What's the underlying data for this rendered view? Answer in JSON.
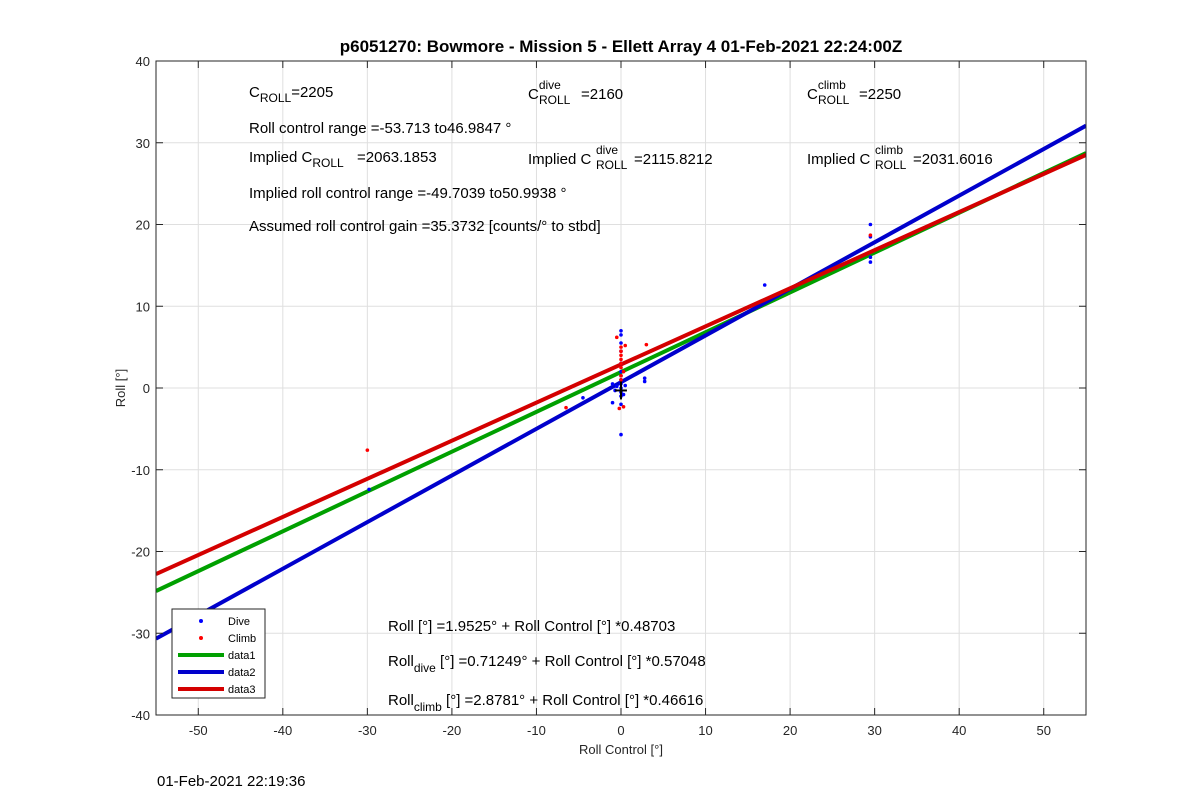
{
  "chart_data": {
    "type": "scatter",
    "title": "p6051270: Bowmore - Mission 5 - Ellett Array 4 01-Feb-2021 22:24:00Z",
    "xlabel": "Roll Control [°]",
    "ylabel": "Roll [°]",
    "xlim": [
      -55,
      55
    ],
    "ylim": [
      -40,
      40
    ],
    "xticks": [
      -50,
      -40,
      -30,
      -20,
      -10,
      0,
      10,
      20,
      30,
      40,
      50
    ],
    "yticks": [
      -40,
      -30,
      -20,
      -10,
      0,
      10,
      20,
      30,
      40
    ],
    "grid": true,
    "legend_position": "bottom-left",
    "series": [
      {
        "name": "Dive",
        "color": "#0000ff",
        "marker": "point",
        "points": [
          [
            0,
            7
          ],
          [
            0,
            6.5
          ],
          [
            0,
            5.5
          ],
          [
            0,
            4.5
          ],
          [
            0,
            3
          ],
          [
            0,
            2
          ],
          [
            0,
            1.5
          ],
          [
            0,
            1
          ],
          [
            0,
            0.5
          ],
          [
            0,
            0
          ],
          [
            0,
            -0.5
          ],
          [
            0,
            -1
          ],
          [
            -0.5,
            0.2
          ],
          [
            -0.7,
            -0.3
          ],
          [
            -1,
            -1.8
          ],
          [
            -1,
            0.5
          ],
          [
            0,
            -5.7
          ],
          [
            0,
            -2
          ],
          [
            2.8,
            0.8
          ],
          [
            2.8,
            1.2
          ],
          [
            -4.5,
            -1.2
          ],
          [
            17,
            12.6
          ],
          [
            29.5,
            20
          ],
          [
            29.5,
            18.5
          ],
          [
            29.5,
            16
          ],
          [
            29.5,
            15.4
          ],
          [
            -29.8,
            -12.4
          ],
          [
            0.5,
            0.3
          ],
          [
            0.3,
            -0.8
          ]
        ]
      },
      {
        "name": "Climb",
        "color": "#ff0000",
        "marker": "point",
        "points": [
          [
            -30,
            -7.6
          ],
          [
            -6.5,
            -2.4
          ],
          [
            0,
            5
          ],
          [
            0,
            4.5
          ],
          [
            0,
            4
          ],
          [
            0,
            3.5
          ],
          [
            0,
            3
          ],
          [
            0,
            2.5
          ],
          [
            0,
            1.5
          ],
          [
            0,
            1
          ],
          [
            -0.5,
            6.2
          ],
          [
            0.5,
            5.2
          ],
          [
            3,
            5.3
          ],
          [
            0.3,
            -2.3
          ],
          [
            -0.2,
            -2.5
          ],
          [
            29.5,
            18.7
          ],
          [
            0.3,
            2
          ]
        ]
      },
      {
        "name": "data1",
        "color": "#00a000",
        "type": "line",
        "intercept": 1.9525,
        "slope": 0.48703
      },
      {
        "name": "data2",
        "color": "#0000cc",
        "type": "line",
        "intercept": 0.71249,
        "slope": 0.57048
      },
      {
        "name": "data3",
        "color": "#d40000",
        "type": "line",
        "intercept": 2.8781,
        "slope": 0.46616
      }
    ],
    "annotations": {
      "c_roll_base": "C",
      "c_roll_sub": "ROLL",
      "c_roll_value": "=2205",
      "c_dive_base": "C",
      "c_dive_sup": "dive",
      "c_dive_sub": "ROLL",
      "c_dive_value": "=2160",
      "c_climb_base": "C",
      "c_climb_sup": "climb",
      "c_climb_sub": "ROLL",
      "c_climb_value": "=2250",
      "roll_range": "Roll control range =-53.713 to46.9847 °",
      "implied_base": "Implied C",
      "implied_sub": "ROLL",
      "implied_value": "=2063.1853",
      "implied_dive_base": "Implied C",
      "implied_dive_sup": "dive",
      "implied_dive_sub": "ROLL",
      "implied_dive_value": "=2115.8212",
      "implied_climb_base": "Implied C",
      "implied_climb_sup": "climb",
      "implied_climb_sub": "ROLL",
      "implied_climb_value": "=2031.6016",
      "implied_range": "Implied roll control range =-49.7039 to50.9938 °",
      "gain": "Assumed roll control gain =35.3732 [counts/° to stbd]",
      "eq_all": "Roll [°] =1.9525° + Roll Control [°] *0.48703",
      "eq_dive_base": "Roll",
      "eq_dive_sub": "dive",
      "eq_dive_rest": " [°] =0.71249° + Roll Control [°] *0.57048",
      "eq_climb_base": "Roll",
      "eq_climb_sub": "climb",
      "eq_climb_rest": " [°] =2.8781° + Roll Control [°] *0.46616"
    }
  },
  "footer": {
    "timestamp": "01-Feb-2021 22:19:36"
  }
}
